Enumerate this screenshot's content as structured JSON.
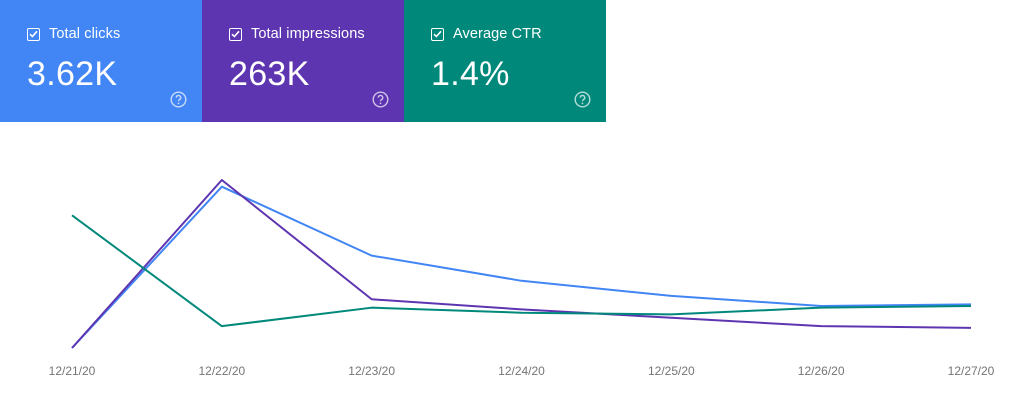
{
  "cards": [
    {
      "label": "Total clicks",
      "value": "3.62K",
      "color": "#4285f4",
      "checked": true,
      "icon": "help-circle-icon"
    },
    {
      "label": "Total impressions",
      "value": "263K",
      "color": "#5e35b1",
      "checked": true,
      "icon": "help-circle-icon"
    },
    {
      "label": "Average CTR",
      "value": "1.4%",
      "color": "#00897b",
      "checked": true,
      "icon": "help-circle-icon"
    }
  ],
  "chart_data": {
    "type": "line",
    "categories": [
      "12/21/20",
      "12/22/20",
      "12/23/20",
      "12/24/20",
      "12/25/20",
      "12/26/20",
      "12/27/20"
    ],
    "series": [
      {
        "key": "clicks",
        "color": "#4285f4",
        "values": [
          0,
          96,
          55,
          40,
          31,
          25,
          26
        ]
      },
      {
        "key": "impressions",
        "color": "#5e35b1",
        "values": [
          0,
          100,
          29,
          23,
          18,
          13,
          12
        ]
      },
      {
        "key": "ctr",
        "color": "#00897b",
        "values": [
          79,
          13,
          24,
          21,
          20,
          24,
          25
        ]
      }
    ],
    "ylim": [
      0,
      100
    ],
    "note": "y values are relative (0–100) since the original chart shows no y-axis labels; gridlines off; no legend"
  }
}
